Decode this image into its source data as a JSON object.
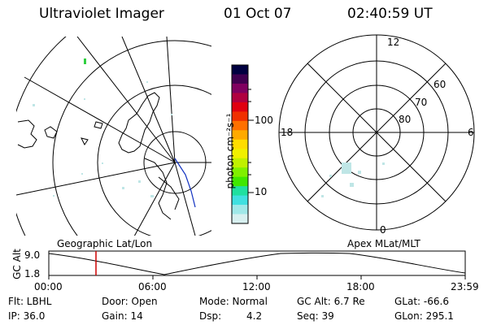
{
  "header": {
    "instrument": "Ultraviolet Imager",
    "date": "01 Oct 07",
    "time": "02:40:59 UT"
  },
  "colorbar": {
    "title": "photon cm⁻²s⁻¹",
    "scale": "log",
    "ticks": [
      "100",
      "10"
    ],
    "colors": [
      "#000040",
      "#400050",
      "#800060",
      "#b00040",
      "#e00010",
      "#f03000",
      "#ff7000",
      "#ffaa00",
      "#ffdd00",
      "#f0f000",
      "#c0f000",
      "#80f000",
      "#40e800",
      "#20e0a0",
      "#40e0e0",
      "#a0e8e8",
      "#d8f0f0"
    ]
  },
  "left_panel_label": "Geographic Lat/Lon",
  "right_panel_label": "Apex MLat/MLT",
  "polar": {
    "clock": {
      "top": "12",
      "right": "6",
      "bottom": "0",
      "left": "18"
    },
    "lat_labels": [
      "60",
      "70",
      "80"
    ]
  },
  "altitude_plot": {
    "ylabel": "GC Alt",
    "yticks": [
      "9.0",
      "1.8"
    ],
    "xticks": [
      "00:00",
      "06:00",
      "12:00",
      "18:00",
      "23:59"
    ],
    "marker_time": "02:40:59"
  },
  "status": {
    "filter": "Flt: LBHL",
    "door": "Door: Open",
    "mode": "Mode: Normal",
    "gc_alt": "GC Alt: 6.7 Re",
    "glat": "GLat: -66.6",
    "ip": "IP: 36.0",
    "gain": "Gain: 14",
    "dsp_label": "Dsp:",
    "dsp_value": "4.2",
    "seq": "Seq: 39",
    "glon": "GLon: 295.1"
  }
}
